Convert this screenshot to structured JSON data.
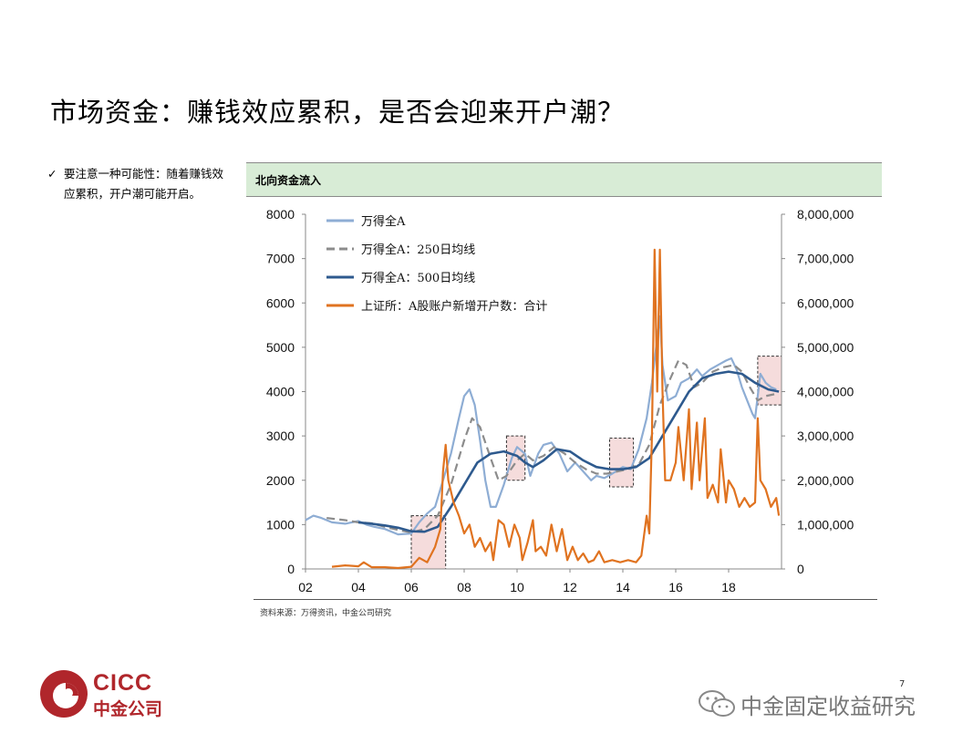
{
  "page": {
    "title": "市场资金：赚钱效应累积，是否会迎来开户潮？",
    "bullet": "要注意一种可能性：随着赚钱效应累积，开户潮可能开启。",
    "panel_title": "北向资金流入",
    "source": "资料来源：万得资讯，中金公司研究",
    "page_number": "7",
    "logo": {
      "en": "CICC",
      "cn": "中金公司"
    },
    "watermark": "中金固定收益研究",
    "colors": {
      "panel_bg": "#d8ecd6",
      "brand": "#b0262b",
      "highlight_fill": "#f5dcdc"
    }
  },
  "chart_data": {
    "type": "line",
    "title": "北向资金流入",
    "x_tick_labels": [
      "02",
      "04",
      "06",
      "08",
      "10",
      "12",
      "14",
      "16",
      "18"
    ],
    "x_ticks_year": [
      2002,
      2004,
      2006,
      2008,
      2010,
      2012,
      2014,
      2016,
      2018
    ],
    "xlim": [
      2002,
      2020
    ],
    "y_left": {
      "lim": [
        0,
        8000
      ],
      "ticks": [
        0,
        1000,
        2000,
        3000,
        4000,
        5000,
        6000,
        7000,
        8000
      ],
      "tick_labels": [
        "0",
        "1000",
        "2000",
        "3000",
        "4000",
        "5000",
        "6000",
        "7000",
        "8000"
      ]
    },
    "y_right": {
      "lim": [
        0,
        8000000
      ],
      "ticks": [
        0,
        1000000,
        2000000,
        3000000,
        4000000,
        5000000,
        6000000,
        7000000,
        8000000
      ],
      "tick_labels": [
        "0",
        "1,000,000",
        "2,000,000",
        "3,000,000",
        "4,000,000",
        "5,000,000",
        "6,000,000",
        "7,000,000",
        "8,000,000"
      ]
    },
    "legend_position": "top-left",
    "series": [
      {
        "name": "万得全A",
        "axis": "left",
        "color": "#8eadd4",
        "style": "solid",
        "points": [
          [
            2002.0,
            1100
          ],
          [
            2002.3,
            1200
          ],
          [
            2002.6,
            1150
          ],
          [
            2003.0,
            1050
          ],
          [
            2003.5,
            1020
          ],
          [
            2004.0,
            1080
          ],
          [
            2004.3,
            1000
          ],
          [
            2004.6,
            950
          ],
          [
            2005.0,
            900
          ],
          [
            2005.5,
            780
          ],
          [
            2006.0,
            800
          ],
          [
            2006.3,
            1050
          ],
          [
            2006.6,
            1250
          ],
          [
            2006.9,
            1400
          ],
          [
            2007.2,
            2000
          ],
          [
            2007.5,
            2600
          ],
          [
            2007.8,
            3400
          ],
          [
            2008.0,
            3900
          ],
          [
            2008.2,
            4050
          ],
          [
            2008.4,
            3700
          ],
          [
            2008.6,
            2900
          ],
          [
            2008.8,
            2000
          ],
          [
            2009.0,
            1400
          ],
          [
            2009.2,
            1400
          ],
          [
            2009.5,
            1900
          ],
          [
            2009.8,
            2500
          ],
          [
            2010.0,
            2750
          ],
          [
            2010.3,
            2600
          ],
          [
            2010.5,
            2100
          ],
          [
            2010.8,
            2600
          ],
          [
            2011.0,
            2800
          ],
          [
            2011.3,
            2850
          ],
          [
            2011.6,
            2600
          ],
          [
            2011.9,
            2200
          ],
          [
            2012.2,
            2400
          ],
          [
            2012.5,
            2200
          ],
          [
            2012.8,
            2000
          ],
          [
            2013.0,
            2100
          ],
          [
            2013.3,
            2050
          ],
          [
            2013.6,
            2150
          ],
          [
            2014.0,
            2300
          ],
          [
            2014.3,
            2250
          ],
          [
            2014.6,
            2700
          ],
          [
            2014.9,
            3400
          ],
          [
            2015.1,
            4200
          ],
          [
            2015.3,
            5200
          ],
          [
            2015.4,
            5700
          ],
          [
            2015.5,
            4600
          ],
          [
            2015.7,
            3800
          ],
          [
            2016.0,
            3900
          ],
          [
            2016.2,
            4200
          ],
          [
            2016.5,
            4300
          ],
          [
            2016.8,
            4500
          ],
          [
            2017.0,
            4350
          ],
          [
            2017.3,
            4500
          ],
          [
            2017.6,
            4600
          ],
          [
            2017.9,
            4700
          ],
          [
            2018.1,
            4750
          ],
          [
            2018.3,
            4500
          ],
          [
            2018.5,
            4100
          ],
          [
            2018.7,
            3800
          ],
          [
            2018.9,
            3500
          ],
          [
            2019.0,
            3400
          ],
          [
            2019.2,
            4400
          ],
          [
            2019.4,
            4200
          ],
          [
            2019.6,
            4100
          ],
          [
            2019.8,
            4050
          ]
        ]
      },
      {
        "name": "万得全A：250日均线",
        "axis": "left",
        "color": "#8c8c8c",
        "style": "dashed",
        "points": [
          [
            2002.8,
            1150
          ],
          [
            2003.5,
            1100
          ],
          [
            2004.0,
            1050
          ],
          [
            2004.5,
            1030
          ],
          [
            2005.0,
            950
          ],
          [
            2005.5,
            880
          ],
          [
            2006.0,
            820
          ],
          [
            2006.5,
            900
          ],
          [
            2007.0,
            1200
          ],
          [
            2007.5,
            1900
          ],
          [
            2008.0,
            2900
          ],
          [
            2008.3,
            3400
          ],
          [
            2008.6,
            3200
          ],
          [
            2009.0,
            2500
          ],
          [
            2009.3,
            2000
          ],
          [
            2009.6,
            2100
          ],
          [
            2010.0,
            2450
          ],
          [
            2010.3,
            2600
          ],
          [
            2010.6,
            2450
          ],
          [
            2011.0,
            2550
          ],
          [
            2011.4,
            2750
          ],
          [
            2011.8,
            2600
          ],
          [
            2012.2,
            2400
          ],
          [
            2012.6,
            2250
          ],
          [
            2013.0,
            2150
          ],
          [
            2013.4,
            2150
          ],
          [
            2013.8,
            2200
          ],
          [
            2014.2,
            2250
          ],
          [
            2014.6,
            2350
          ],
          [
            2015.0,
            2800
          ],
          [
            2015.4,
            3700
          ],
          [
            2015.8,
            4300
          ],
          [
            2016.1,
            4700
          ],
          [
            2016.4,
            4600
          ],
          [
            2016.7,
            4100
          ],
          [
            2017.0,
            4200
          ],
          [
            2017.4,
            4450
          ],
          [
            2017.8,
            4550
          ],
          [
            2018.2,
            4600
          ],
          [
            2018.5,
            4450
          ],
          [
            2018.8,
            4100
          ],
          [
            2019.1,
            3800
          ],
          [
            2019.4,
            3900
          ],
          [
            2019.8,
            3950
          ]
        ]
      },
      {
        "name": "万得全A：500日均线",
        "axis": "left",
        "color": "#2e5a8e",
        "style": "solid",
        "points": [
          [
            2004.0,
            1050
          ],
          [
            2004.5,
            1020
          ],
          [
            2005.0,
            980
          ],
          [
            2005.5,
            930
          ],
          [
            2006.0,
            850
          ],
          [
            2006.5,
            840
          ],
          [
            2007.0,
            950
          ],
          [
            2007.5,
            1400
          ],
          [
            2008.0,
            1900
          ],
          [
            2008.5,
            2400
          ],
          [
            2009.0,
            2600
          ],
          [
            2009.5,
            2650
          ],
          [
            2010.0,
            2550
          ],
          [
            2010.3,
            2400
          ],
          [
            2010.6,
            2300
          ],
          [
            2011.0,
            2450
          ],
          [
            2011.5,
            2700
          ],
          [
            2012.0,
            2650
          ],
          [
            2012.5,
            2450
          ],
          [
            2013.0,
            2300
          ],
          [
            2013.5,
            2250
          ],
          [
            2014.0,
            2250
          ],
          [
            2014.5,
            2300
          ],
          [
            2015.0,
            2500
          ],
          [
            2015.5,
            3000
          ],
          [
            2016.0,
            3500
          ],
          [
            2016.5,
            4000
          ],
          [
            2017.0,
            4300
          ],
          [
            2017.5,
            4400
          ],
          [
            2018.0,
            4450
          ],
          [
            2018.5,
            4400
          ],
          [
            2019.0,
            4200
          ],
          [
            2019.5,
            4050
          ],
          [
            2019.9,
            4000
          ]
        ]
      },
      {
        "name": "上证所：A股账户新增开户数：合计",
        "axis": "right",
        "color": "#e07320",
        "style": "solid",
        "points": [
          [
            2003.0,
            50000
          ],
          [
            2003.5,
            80000
          ],
          [
            2004.0,
            60000
          ],
          [
            2004.2,
            150000
          ],
          [
            2004.5,
            40000
          ],
          [
            2005.0,
            40000
          ],
          [
            2005.5,
            20000
          ],
          [
            2006.0,
            50000
          ],
          [
            2006.3,
            250000
          ],
          [
            2006.6,
            150000
          ],
          [
            2006.9,
            500000
          ],
          [
            2007.1,
            900000
          ],
          [
            2007.2,
            2200000
          ],
          [
            2007.3,
            2800000
          ],
          [
            2007.4,
            2000000
          ],
          [
            2007.6,
            1500000
          ],
          [
            2007.8,
            1200000
          ],
          [
            2008.0,
            800000
          ],
          [
            2008.2,
            1000000
          ],
          [
            2008.4,
            500000
          ],
          [
            2008.6,
            700000
          ],
          [
            2008.8,
            400000
          ],
          [
            2009.0,
            600000
          ],
          [
            2009.1,
            200000
          ],
          [
            2009.3,
            1100000
          ],
          [
            2009.5,
            1000000
          ],
          [
            2009.7,
            500000
          ],
          [
            2009.9,
            1000000
          ],
          [
            2010.1,
            700000
          ],
          [
            2010.2,
            200000
          ],
          [
            2010.4,
            600000
          ],
          [
            2010.6,
            1100000
          ],
          [
            2010.7,
            400000
          ],
          [
            2010.9,
            500000
          ],
          [
            2011.1,
            300000
          ],
          [
            2011.3,
            1000000
          ],
          [
            2011.5,
            400000
          ],
          [
            2011.7,
            900000
          ],
          [
            2011.9,
            200000
          ],
          [
            2012.1,
            500000
          ],
          [
            2012.3,
            200000
          ],
          [
            2012.5,
            350000
          ],
          [
            2012.7,
            150000
          ],
          [
            2012.9,
            200000
          ],
          [
            2013.1,
            400000
          ],
          [
            2013.3,
            150000
          ],
          [
            2013.6,
            200000
          ],
          [
            2013.9,
            150000
          ],
          [
            2014.2,
            200000
          ],
          [
            2014.5,
            150000
          ],
          [
            2014.7,
            300000
          ],
          [
            2014.9,
            1200000
          ],
          [
            2015.0,
            800000
          ],
          [
            2015.1,
            3000000
          ],
          [
            2015.2,
            7200000
          ],
          [
            2015.3,
            4000000
          ],
          [
            2015.4,
            7200000
          ],
          [
            2015.5,
            4000000
          ],
          [
            2015.6,
            2000000
          ],
          [
            2015.8,
            2000000
          ],
          [
            2016.0,
            2400000
          ],
          [
            2016.1,
            3200000
          ],
          [
            2016.3,
            2000000
          ],
          [
            2016.5,
            3600000
          ],
          [
            2016.6,
            1800000
          ],
          [
            2016.8,
            3300000
          ],
          [
            2016.9,
            2000000
          ],
          [
            2017.1,
            3400000
          ],
          [
            2017.2,
            1600000
          ],
          [
            2017.4,
            1900000
          ],
          [
            2017.6,
            1500000
          ],
          [
            2017.7,
            2700000
          ],
          [
            2017.9,
            1500000
          ],
          [
            2018.0,
            2000000
          ],
          [
            2018.2,
            1800000
          ],
          [
            2018.4,
            1400000
          ],
          [
            2018.6,
            1600000
          ],
          [
            2018.8,
            1400000
          ],
          [
            2019.0,
            1500000
          ],
          [
            2019.1,
            3400000
          ],
          [
            2019.2,
            2000000
          ],
          [
            2019.4,
            1800000
          ],
          [
            2019.6,
            1400000
          ],
          [
            2019.8,
            1600000
          ],
          [
            2019.9,
            1200000
          ]
        ]
      }
    ],
    "highlights": [
      {
        "x_start": 2006.0,
        "x_end": 2007.3,
        "y_start": 0,
        "y_end": 1200
      },
      {
        "x_start": 2009.6,
        "x_end": 2010.3,
        "y_start": 2000,
        "y_end": 3000
      },
      {
        "x_start": 2013.5,
        "x_end": 2014.4,
        "y_start": 1850,
        "y_end": 2950
      },
      {
        "x_start": 2019.1,
        "x_end": 2020.0,
        "y_start": 3700,
        "y_end": 4800
      }
    ]
  }
}
